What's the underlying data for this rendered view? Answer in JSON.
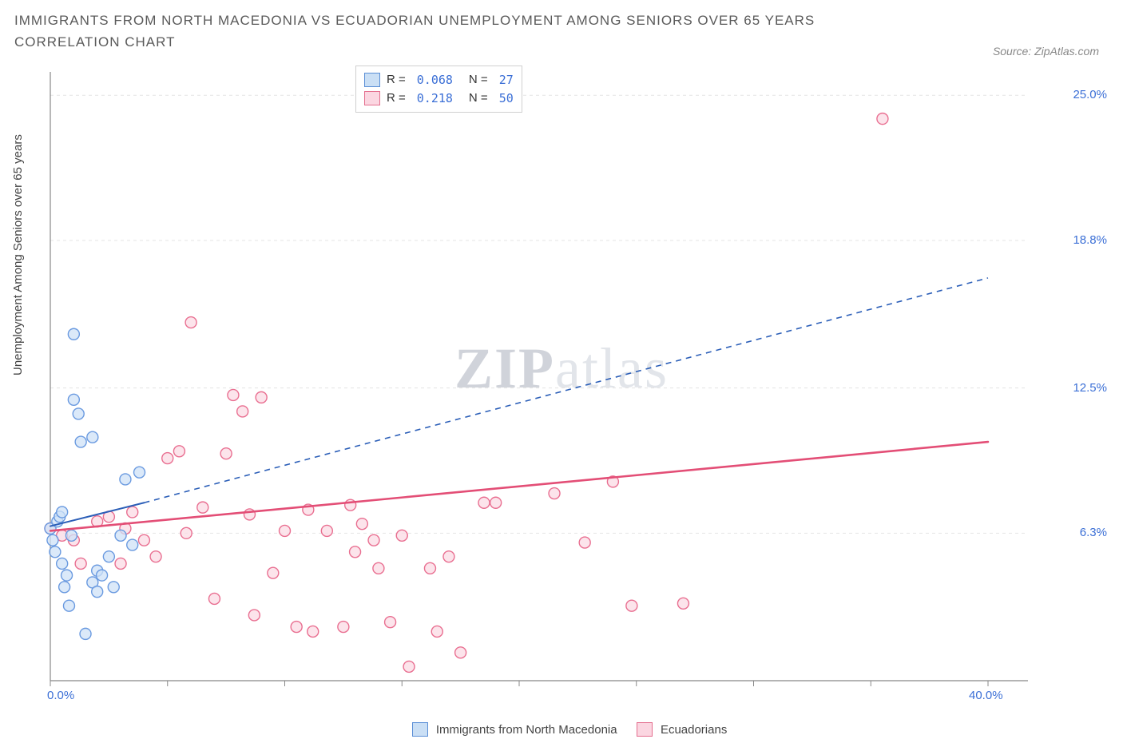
{
  "title": "IMMIGRANTS FROM NORTH MACEDONIA VS ECUADORIAN UNEMPLOYMENT AMONG SENIORS OVER 65 YEARS CORRELATION CHART",
  "source": "Source: ZipAtlas.com",
  "watermark_a": "ZIP",
  "watermark_b": "atlas",
  "ylabel": "Unemployment Among Seniors over 65 years",
  "chart": {
    "type": "scatter",
    "xlim": [
      0,
      40
    ],
    "ylim": [
      0,
      26
    ],
    "x_ticks_minor_step": 5,
    "x_tick_labels": [
      {
        "x": 0,
        "label": "0.0%"
      },
      {
        "x": 40,
        "label": "40.0%"
      }
    ],
    "y_tick_labels": [
      {
        "y": 6.3,
        "label": "6.3%"
      },
      {
        "y": 12.5,
        "label": "12.5%"
      },
      {
        "y": 18.8,
        "label": "18.8%"
      },
      {
        "y": 25.0,
        "label": "25.0%"
      }
    ],
    "grid_color": "#e4e4e4",
    "axis_color": "#888888",
    "marker_radius": 7,
    "marker_stroke_width": 1.4,
    "series": [
      {
        "id": "macedonia",
        "name": "Immigrants from North Macedonia",
        "fill": "#cfe1f7",
        "stroke": "#6a9ae0",
        "legend_fill": "#cadff5",
        "legend_stroke": "#5b8fd6",
        "R": "0.068",
        "N": "27",
        "trend": {
          "solid": {
            "x1": 0,
            "y1": 6.6,
            "x2": 4.0,
            "y2": 7.6
          },
          "dashed": {
            "x1": 4.0,
            "y1": 7.6,
            "x2": 40,
            "y2": 17.2
          },
          "color": "#2c5fb8",
          "width": 2,
          "dash": "7,6"
        },
        "points": [
          [
            0.0,
            6.5
          ],
          [
            0.1,
            6.0
          ],
          [
            0.2,
            5.5
          ],
          [
            0.3,
            6.8
          ],
          [
            0.4,
            7.0
          ],
          [
            0.5,
            5.0
          ],
          [
            0.6,
            4.0
          ],
          [
            0.7,
            4.5
          ],
          [
            0.8,
            3.2
          ],
          [
            0.9,
            6.2
          ],
          [
            1.0,
            14.8
          ],
          [
            1.0,
            12.0
          ],
          [
            1.2,
            11.4
          ],
          [
            1.3,
            10.2
          ],
          [
            1.5,
            2.0
          ],
          [
            1.8,
            10.4
          ],
          [
            1.8,
            4.2
          ],
          [
            2.0,
            4.7
          ],
          [
            2.0,
            3.8
          ],
          [
            2.2,
            4.5
          ],
          [
            2.5,
            5.3
          ],
          [
            2.7,
            4.0
          ],
          [
            3.2,
            8.6
          ],
          [
            3.5,
            5.8
          ],
          [
            3.8,
            8.9
          ],
          [
            3.0,
            6.2
          ],
          [
            0.5,
            7.2
          ]
        ]
      },
      {
        "id": "ecuadorians",
        "name": "Ecuadorians",
        "fill": "#fbdbe4",
        "stroke": "#e96f91",
        "legend_fill": "#fbd6e1",
        "legend_stroke": "#e46f8f",
        "R": "0.218",
        "N": "50",
        "trend": {
          "solid": {
            "x1": 0,
            "y1": 6.4,
            "x2": 40,
            "y2": 10.2
          },
          "color": "#e34e76",
          "width": 2.6
        },
        "points": [
          [
            0.0,
            6.5
          ],
          [
            0.5,
            6.2
          ],
          [
            1.0,
            6.0
          ],
          [
            1.3,
            5.0
          ],
          [
            2.0,
            6.8
          ],
          [
            2.5,
            7.0
          ],
          [
            3.0,
            5.0
          ],
          [
            3.2,
            6.5
          ],
          [
            3.5,
            7.2
          ],
          [
            4.0,
            6.0
          ],
          [
            4.5,
            5.3
          ],
          [
            5.0,
            9.5
          ],
          [
            5.5,
            9.8
          ],
          [
            5.8,
            6.3
          ],
          [
            6.0,
            15.3
          ],
          [
            6.5,
            7.4
          ],
          [
            7.0,
            3.5
          ],
          [
            7.5,
            9.7
          ],
          [
            7.8,
            12.2
          ],
          [
            8.2,
            11.5
          ],
          [
            8.5,
            7.1
          ],
          [
            8.7,
            2.8
          ],
          [
            9.0,
            12.1
          ],
          [
            9.5,
            4.6
          ],
          [
            10.0,
            6.4
          ],
          [
            10.5,
            2.3
          ],
          [
            11.0,
            7.3
          ],
          [
            11.2,
            2.1
          ],
          [
            11.8,
            6.4
          ],
          [
            12.5,
            2.3
          ],
          [
            12.8,
            7.5
          ],
          [
            13.0,
            5.5
          ],
          [
            13.3,
            6.7
          ],
          [
            13.8,
            6.0
          ],
          [
            14.0,
            4.8
          ],
          [
            14.5,
            2.5
          ],
          [
            15.0,
            6.2
          ],
          [
            15.3,
            0.6
          ],
          [
            16.2,
            4.8
          ],
          [
            16.5,
            2.1
          ],
          [
            17.0,
            5.3
          ],
          [
            17.5,
            1.2
          ],
          [
            18.5,
            7.6
          ],
          [
            21.5,
            8.0
          ],
          [
            22.8,
            5.9
          ],
          [
            24.0,
            8.5
          ],
          [
            24.8,
            3.2
          ],
          [
            27.0,
            3.3
          ],
          [
            35.5,
            24.0
          ],
          [
            19.0,
            7.6
          ]
        ]
      }
    ]
  },
  "legend_top_labels": {
    "R": "R =",
    "N": "N ="
  },
  "colors": {
    "title": "#5a5a5a",
    "tick": "#3b6fd6"
  }
}
